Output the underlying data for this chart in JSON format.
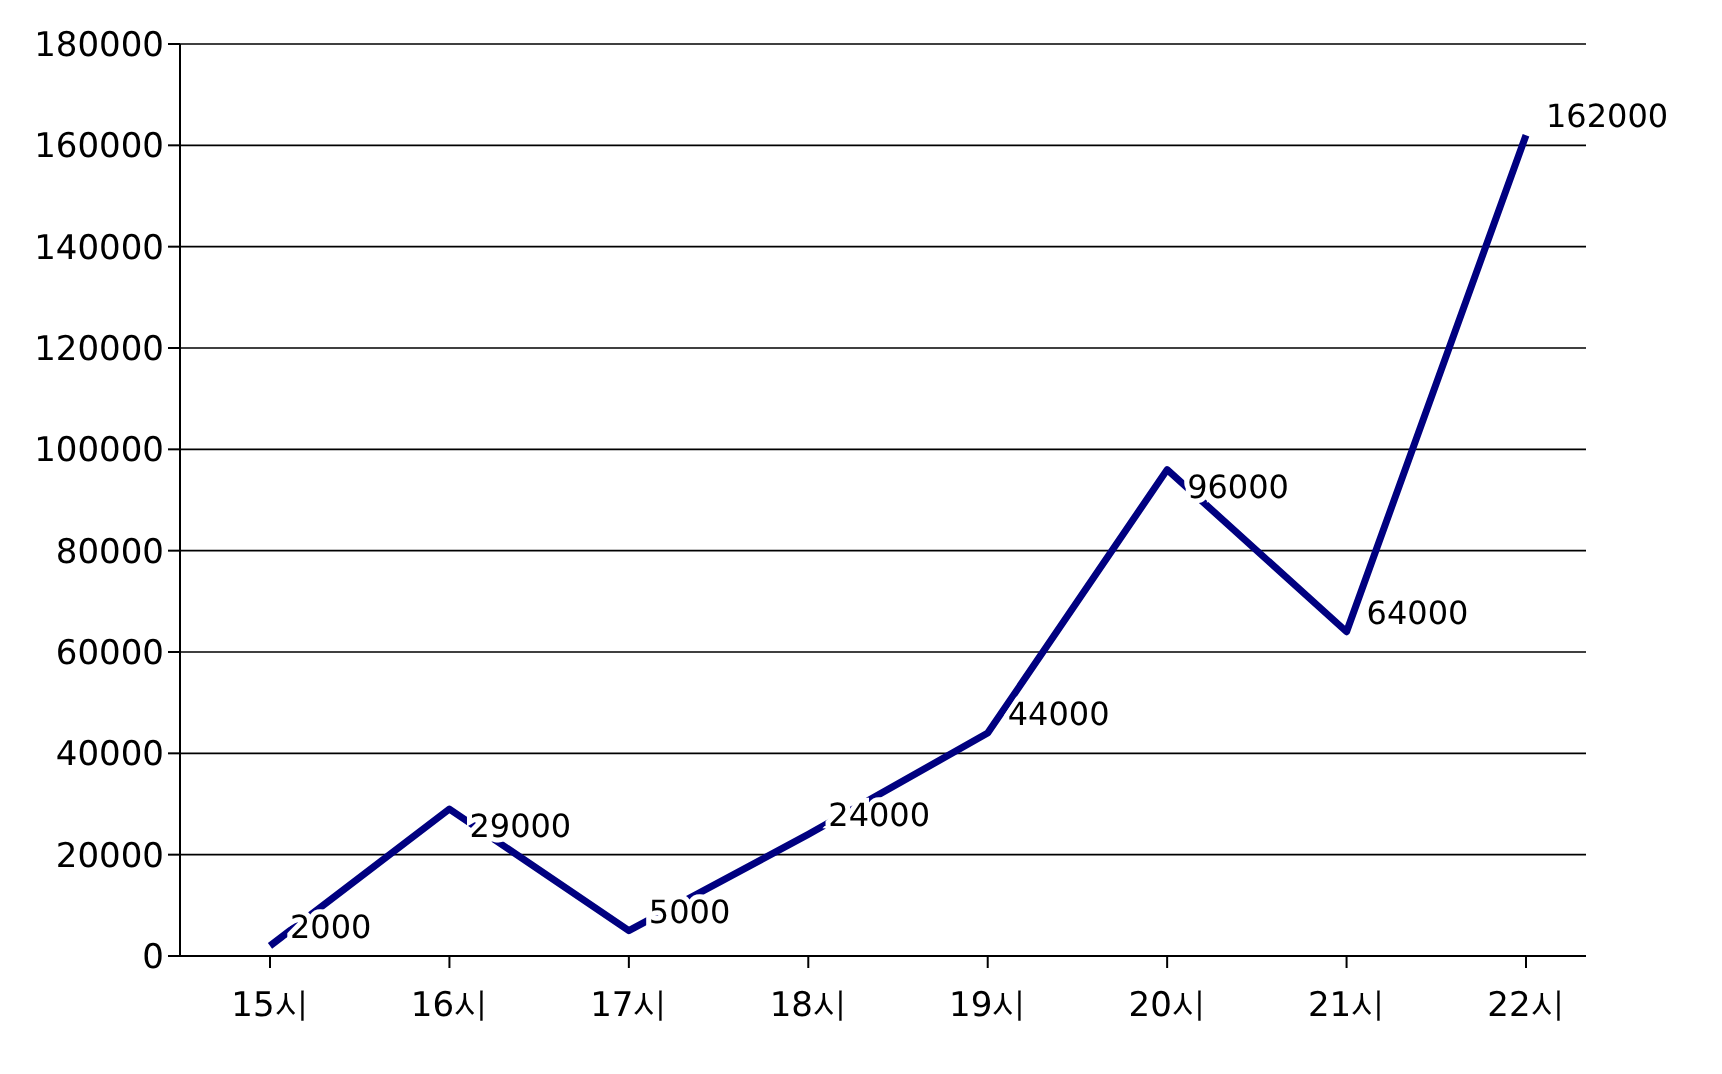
{
  "chart_data": {
    "type": "line",
    "categories": [
      "15시",
      "16시",
      "17시",
      "18시",
      "19시",
      "20시",
      "21시",
      "22시"
    ],
    "series": [
      {
        "color": "#000080",
        "values": [
          2000,
          29000,
          5000,
          24000,
          44000,
          96000,
          64000,
          162000
        ]
      }
    ],
    "ylim": [
      0,
      180000
    ],
    "yticks": [
      0,
      20000,
      40000,
      60000,
      80000,
      100000,
      120000,
      140000,
      160000,
      180000
    ],
    "grid": "y",
    "data_labels": true,
    "marker": "none",
    "line_style": "solid"
  }
}
